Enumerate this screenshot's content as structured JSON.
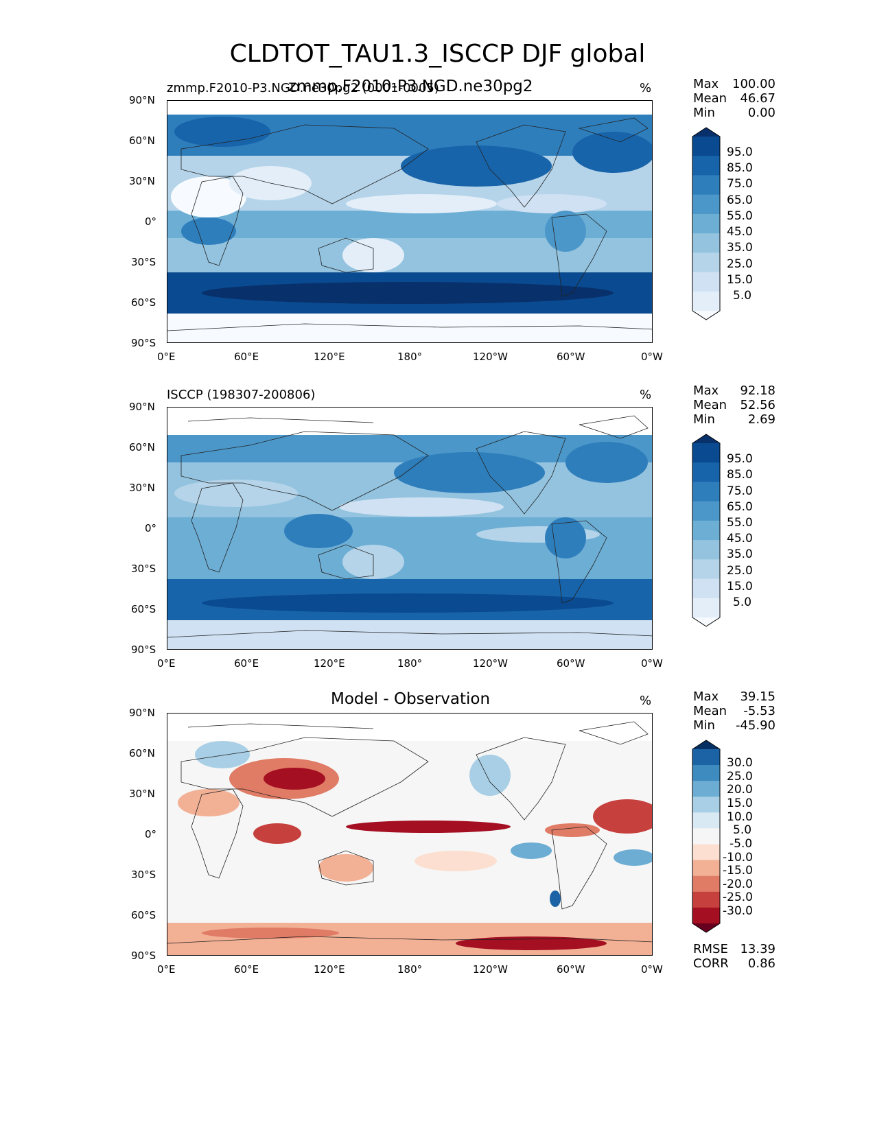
{
  "figure": {
    "title": "CLDTOT_TAU1.3_ISCCP DJF global"
  },
  "panels": [
    {
      "id": "test",
      "title": "zmmp.F2010-P3.NGD.ne30pg2",
      "subtitle_left": "zmmp.F2010-P3.NGD.ne30pg2 (0001-0005)",
      "units": "%",
      "stats": {
        "max_label": "Max",
        "max": "100.00",
        "mean_label": "Mean",
        "mean": "46.67",
        "min_label": "Min",
        "min": "0.00"
      },
      "colorbar_ticks": [
        "95.0",
        "85.0",
        "75.0",
        "65.0",
        "55.0",
        "45.0",
        "35.0",
        "25.0",
        "15.0",
        "5.0"
      ],
      "palette": "blues"
    },
    {
      "id": "reference",
      "title": "",
      "subtitle_left": "ISCCP (198307-200806)",
      "units": "%",
      "stats": {
        "max_label": "Max",
        "max": "92.18",
        "mean_label": "Mean",
        "mean": "52.56",
        "min_label": "Min",
        "min": "2.69"
      },
      "colorbar_ticks": [
        "95.0",
        "85.0",
        "75.0",
        "65.0",
        "55.0",
        "45.0",
        "35.0",
        "25.0",
        "15.0",
        "5.0"
      ],
      "palette": "blues"
    },
    {
      "id": "diff",
      "title": "Model - Observation",
      "subtitle_left": "",
      "units": "%",
      "stats": {
        "max_label": "Max",
        "max": "39.15",
        "mean_label": "Mean",
        "mean": "-5.53",
        "min_label": "Min",
        "min": "-45.90",
        "rmse_label": "RMSE",
        "rmse": "13.39",
        "corr_label": "CORR",
        "corr": "0.86"
      },
      "colorbar_ticks": [
        "30.0",
        "25.0",
        "20.0",
        "15.0",
        "10.0",
        "5.0",
        "-5.0",
        "-10.0",
        "-15.0",
        "-20.0",
        "-25.0",
        "-30.0"
      ],
      "palette": "rdbu"
    }
  ],
  "axes": {
    "lat_ticks": [
      "90°N",
      "60°N",
      "30°N",
      "0°",
      "30°S",
      "60°S",
      "90°S"
    ],
    "lon_ticks": [
      "0°E",
      "60°E",
      "120°E",
      "180°",
      "120°W",
      "60°W",
      "0°W"
    ]
  },
  "colors": {
    "blues": [
      "#f7fbff",
      "#e3eef9",
      "#cfe1f2",
      "#b5d4e9",
      "#93c3df",
      "#6daed5",
      "#4b97c9",
      "#2f7ebc",
      "#1864aa",
      "#0a4a90",
      "#08306b"
    ],
    "rdbu": [
      "#67001f",
      "#a50f22",
      "#c6403d",
      "#e07b65",
      "#f2b095",
      "#fcdfd0",
      "#f6f6f6",
      "#d9e9f3",
      "#a8cfe5",
      "#6dadd3",
      "#3d8bbf",
      "#1c63a5",
      "#053061"
    ]
  },
  "chart_data": [
    {
      "type": "heatmap",
      "title": "zmmp.F2010-P3.NGD.ne30pg2",
      "subtitle": "zmmp.F2010-P3.NGD.ne30pg2 (0001-0005)",
      "variable": "CLDTOT_TAU1.3_ISCCP",
      "season": "DJF",
      "units": "%",
      "x_range": [
        0,
        360
      ],
      "y_range": [
        -90,
        90
      ],
      "levels": [
        5,
        15,
        25,
        35,
        45,
        55,
        65,
        75,
        85,
        95
      ],
      "max": 100.0,
      "mean": 46.67,
      "min": 0.0
    },
    {
      "type": "heatmap",
      "title": "ISCCP (198307-200806)",
      "units": "%",
      "x_range": [
        0,
        360
      ],
      "y_range": [
        -90,
        90
      ],
      "levels": [
        5,
        15,
        25,
        35,
        45,
        55,
        65,
        75,
        85,
        95
      ],
      "max": 92.18,
      "mean": 52.56,
      "min": 2.69
    },
    {
      "type": "heatmap",
      "title": "Model - Observation",
      "units": "%",
      "x_range": [
        0,
        360
      ],
      "y_range": [
        -90,
        90
      ],
      "levels": [
        -30,
        -25,
        -20,
        -15,
        -10,
        -5,
        5,
        10,
        15,
        20,
        25,
        30
      ],
      "max": 39.15,
      "mean": -5.53,
      "min": -45.9,
      "rmse": 13.39,
      "corr": 0.86
    }
  ]
}
